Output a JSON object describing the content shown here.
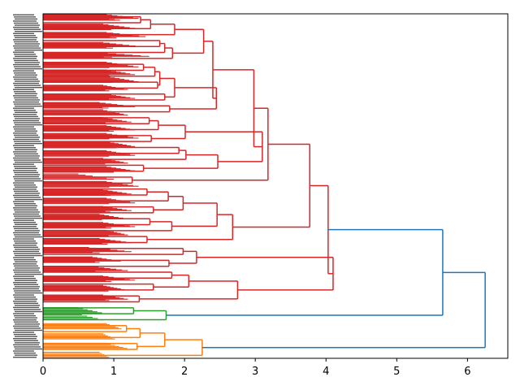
{
  "chart_data": {
    "type": "dendrogram",
    "orientation": "left",
    "title": "",
    "xlabel": "",
    "ylabel": "",
    "xlim": [
      0,
      6.57
    ],
    "x_ticks": [
      0,
      1,
      2,
      3,
      4,
      5,
      6
    ],
    "x_tick_labels": [
      "0",
      "1",
      "2",
      "3",
      "4",
      "5",
      "6"
    ],
    "leaf_count": 166,
    "colors": {
      "cluster_red": "#d62728",
      "cluster_green": "#2ca02c",
      "cluster_orange": "#ff7f0e",
      "link_above_threshold": "#1f77b4",
      "axis": "#000000"
    },
    "clusters": [
      {
        "name": "red",
        "color": "#d62728",
        "leaf_start": 0,
        "leaf_end": 140
      },
      {
        "name": "green",
        "color": "#2ca02c",
        "leaf_start": 140,
        "leaf_end": 150
      },
      {
        "name": "orange",
        "color": "#ff7f0e",
        "leaf_start": 150,
        "leaf_end": 166
      }
    ],
    "merges": [
      {
        "name": "A1",
        "height": 1.38,
        "color": "#d62728",
        "children": [
          {
            "leaf": 0
          },
          {
            "leaf": 1
          }
        ]
      },
      {
        "name": "A2",
        "height": 1.52,
        "color": "#d62728",
        "children": [
          {
            "node": "A1"
          },
          {
            "leaf": 2
          }
        ]
      },
      {
        "name": "A3",
        "height": 1.86,
        "color": "#d62728",
        "children": [
          {
            "node": "A2"
          },
          {
            "leaf": 3
          }
        ]
      },
      {
        "name": "A4",
        "height": 1.65,
        "color": "#d62728",
        "children": [
          {
            "leaf": 4
          },
          {
            "leaf": 5
          }
        ]
      },
      {
        "name": "A5",
        "height": 1.72,
        "color": "#d62728",
        "children": [
          {
            "node": "A4"
          },
          {
            "leaf": 6
          }
        ]
      },
      {
        "name": "A6",
        "height": 1.83,
        "color": "#d62728",
        "children": [
          {
            "node": "A5"
          },
          {
            "leaf": 7
          }
        ]
      },
      {
        "name": "A7",
        "height": 2.27,
        "color": "#d62728",
        "children": [
          {
            "node": "A3"
          },
          {
            "node": "A6"
          }
        ]
      },
      {
        "name": "B1",
        "height": 1.42,
        "color": "#d62728",
        "children": [
          {
            "leaf": 8
          },
          {
            "leaf": 9
          }
        ]
      },
      {
        "name": "B2",
        "height": 1.58,
        "color": "#d62728",
        "children": [
          {
            "node": "B1"
          },
          {
            "leaf": 10
          }
        ]
      },
      {
        "name": "B3",
        "height": 1.62,
        "color": "#d62728",
        "children": [
          {
            "leaf": 11
          },
          {
            "leaf": 12
          }
        ]
      },
      {
        "name": "B4",
        "height": 1.65,
        "color": "#d62728",
        "children": [
          {
            "node": "B2"
          },
          {
            "node": "B3"
          }
        ]
      },
      {
        "name": "B5",
        "height": 1.72,
        "color": "#d62728",
        "children": [
          {
            "leaf": 13
          },
          {
            "leaf": 14
          }
        ]
      },
      {
        "name": "B6",
        "height": 1.86,
        "color": "#d62728",
        "children": [
          {
            "node": "B4"
          },
          {
            "node": "B5"
          }
        ]
      },
      {
        "name": "B7",
        "height": 1.79,
        "color": "#d62728",
        "children": [
          {
            "leaf": 15
          },
          {
            "leaf": 16
          }
        ]
      },
      {
        "name": "B8",
        "height": 2.45,
        "color": "#d62728",
        "children": [
          {
            "node": "B6"
          },
          {
            "node": "B7"
          }
        ]
      },
      {
        "name": "B9",
        "height": 2.4,
        "color": "#d62728",
        "children": [
          {
            "node": "A7"
          },
          {
            "node": "B8"
          }
        ]
      },
      {
        "name": "C1",
        "height": 1.5,
        "color": "#d62728",
        "children": [
          {
            "leaf": 17
          },
          {
            "leaf": 18
          }
        ]
      },
      {
        "name": "C2",
        "height": 1.63,
        "color": "#d62728",
        "children": [
          {
            "node": "C1"
          },
          {
            "leaf": 19
          }
        ]
      },
      {
        "name": "C3",
        "height": 1.53,
        "color": "#d62728",
        "children": [
          {
            "leaf": 20
          },
          {
            "leaf": 21
          }
        ]
      },
      {
        "name": "C4",
        "height": 2.01,
        "color": "#d62728",
        "children": [
          {
            "node": "C2"
          },
          {
            "node": "C3"
          }
        ]
      },
      {
        "name": "C5",
        "height": 1.92,
        "color": "#d62728",
        "children": [
          {
            "leaf": 22
          },
          {
            "leaf": 23
          }
        ]
      },
      {
        "name": "C6",
        "height": 2.02,
        "color": "#d62728",
        "children": [
          {
            "node": "C5"
          },
          {
            "leaf": 24
          }
        ]
      },
      {
        "name": "C7",
        "height": 1.42,
        "color": "#d62728",
        "children": [
          {
            "leaf": 25
          },
          {
            "leaf": 26
          }
        ]
      },
      {
        "name": "C8",
        "height": 2.47,
        "color": "#d62728",
        "children": [
          {
            "node": "C6"
          },
          {
            "node": "C7"
          }
        ]
      },
      {
        "name": "C9",
        "height": 3.1,
        "color": "#d62728",
        "children": [
          {
            "node": "C4"
          },
          {
            "node": "C8"
          }
        ]
      },
      {
        "name": "D1",
        "height": 2.98,
        "color": "#d62728",
        "children": [
          {
            "node": "B9"
          },
          {
            "node": "C9"
          }
        ]
      },
      {
        "name": "D2",
        "height": 1.26,
        "color": "#d62728",
        "children": [
          {
            "leaf": 27
          },
          {
            "leaf": 28
          }
        ]
      },
      {
        "name": "D3",
        "height": 3.18,
        "color": "#d62728",
        "children": [
          {
            "node": "D1"
          },
          {
            "node": "D2"
          }
        ]
      },
      {
        "name": "E1",
        "height": 1.47,
        "color": "#d62728",
        "children": [
          {
            "leaf": 29
          },
          {
            "leaf": 30
          }
        ]
      },
      {
        "name": "E2",
        "height": 1.77,
        "color": "#d62728",
        "children": [
          {
            "node": "E1"
          },
          {
            "leaf": 31
          }
        ]
      },
      {
        "name": "E3",
        "height": 1.56,
        "color": "#d62728",
        "children": [
          {
            "leaf": 32
          },
          {
            "leaf": 33
          }
        ]
      },
      {
        "name": "E4",
        "height": 1.98,
        "color": "#d62728",
        "children": [
          {
            "node": "E2"
          },
          {
            "node": "E3"
          }
        ]
      },
      {
        "name": "E5",
        "height": 1.51,
        "color": "#d62728",
        "children": [
          {
            "leaf": 34
          },
          {
            "leaf": 35
          }
        ]
      },
      {
        "name": "E6",
        "height": 1.82,
        "color": "#d62728",
        "children": [
          {
            "node": "E5"
          },
          {
            "leaf": 36
          }
        ]
      },
      {
        "name": "E7",
        "height": 2.46,
        "color": "#d62728",
        "children": [
          {
            "node": "E4"
          },
          {
            "node": "E6"
          }
        ]
      },
      {
        "name": "E8",
        "height": 1.47,
        "color": "#d62728",
        "children": [
          {
            "leaf": 37
          },
          {
            "leaf": 38
          }
        ]
      },
      {
        "name": "E9",
        "height": 2.68,
        "color": "#d62728",
        "children": [
          {
            "node": "E7"
          },
          {
            "node": "E8"
          }
        ]
      },
      {
        "name": "F1",
        "height": 1.98,
        "color": "#d62728",
        "children": [
          {
            "leaf": 39
          },
          {
            "leaf": 40
          }
        ]
      },
      {
        "name": "F2",
        "height": 1.78,
        "color": "#d62728",
        "children": [
          {
            "leaf": 41
          },
          {
            "leaf": 42
          }
        ]
      },
      {
        "name": "F3",
        "height": 2.17,
        "color": "#d62728",
        "children": [
          {
            "node": "F1"
          },
          {
            "node": "F2"
          }
        ]
      },
      {
        "name": "F4",
        "height": 1.82,
        "color": "#d62728",
        "children": [
          {
            "leaf": 43
          },
          {
            "leaf": 44
          }
        ]
      },
      {
        "name": "F5",
        "height": 1.56,
        "color": "#d62728",
        "children": [
          {
            "leaf": 45
          },
          {
            "leaf": 46
          }
        ]
      },
      {
        "name": "F6",
        "height": 2.06,
        "color": "#d62728",
        "children": [
          {
            "node": "F4"
          },
          {
            "node": "F5"
          }
        ]
      },
      {
        "name": "F7",
        "height": 1.36,
        "color": "#d62728",
        "children": [
          {
            "leaf": 47
          },
          {
            "leaf": 48
          }
        ]
      },
      {
        "name": "F8",
        "height": 2.75,
        "color": "#d62728",
        "children": [
          {
            "node": "F6"
          },
          {
            "node": "F7"
          }
        ]
      },
      {
        "name": "F9",
        "height": 4.1,
        "color": "#d62728",
        "children": [
          {
            "node": "F3"
          },
          {
            "node": "F8"
          }
        ]
      },
      {
        "name": "G1",
        "height": 3.77,
        "color": "#d62728",
        "children": [
          {
            "node": "D3"
          },
          {
            "node": "E9"
          }
        ]
      },
      {
        "name": "G2",
        "height": 4.03,
        "color": "#d62728",
        "children": [
          {
            "node": "G1"
          },
          {
            "node": "F9"
          }
        ]
      },
      {
        "name": "H1",
        "height": 1.28,
        "color": "#2ca02c",
        "children": [
          {
            "leaf": 49
          },
          {
            "leaf": 50
          }
        ]
      },
      {
        "name": "H2",
        "height": 1.74,
        "color": "#2ca02c",
        "children": [
          {
            "node": "H1"
          },
          {
            "leaf": 51
          }
        ]
      },
      {
        "name": "I1",
        "height": 1.18,
        "color": "#ff7f0e",
        "children": [
          {
            "leaf": 52
          },
          {
            "leaf": 53
          }
        ]
      },
      {
        "name": "I2",
        "height": 1.37,
        "color": "#ff7f0e",
        "children": [
          {
            "node": "I1"
          },
          {
            "leaf": 54
          }
        ]
      },
      {
        "name": "I3",
        "height": 1.33,
        "color": "#ff7f0e",
        "children": [
          {
            "leaf": 55
          },
          {
            "leaf": 56
          }
        ]
      },
      {
        "name": "I4",
        "height": 1.72,
        "color": "#ff7f0e",
        "children": [
          {
            "node": "I2"
          },
          {
            "node": "I3"
          }
        ]
      },
      {
        "name": "I5",
        "height": 2.25,
        "color": "#ff7f0e",
        "children": [
          {
            "node": "I4"
          },
          {
            "leaf": 57
          }
        ]
      },
      {
        "name": "J1",
        "height": 5.65,
        "color": "#1f77b4",
        "children": [
          {
            "node": "G2"
          },
          {
            "node": "H2"
          }
        ]
      },
      {
        "name": "J2",
        "height": 6.25,
        "color": "#1f77b4",
        "children": [
          {
            "node": "J1"
          },
          {
            "node": "I5"
          }
        ]
      }
    ],
    "groups": [
      {
        "index": 0,
        "position": 0.6,
        "min": 0.9,
        "max": 1.35,
        "color": "#d62728",
        "lines": 10
      },
      {
        "index": 1,
        "position": 2.2,
        "min": 0.85,
        "max": 1.3,
        "color": "#d62728",
        "lines": 9
      },
      {
        "index": 2,
        "position": 3.6,
        "min": 0.9,
        "max": 1.45,
        "color": "#d62728",
        "lines": 9
      },
      {
        "index": 3,
        "position": 5.3,
        "min": 0.85,
        "max": 1.4,
        "color": "#d62728",
        "lines": 9
      },
      {
        "index": 4,
        "position": 7.0,
        "min": 0.8,
        "max": 1.5,
        "color": "#d62728",
        "lines": 10
      },
      {
        "index": 5,
        "position": 8.6,
        "min": 0.9,
        "max": 1.35,
        "color": "#d62728",
        "lines": 8
      },
      {
        "index": 6,
        "position": 9.9,
        "min": 0.9,
        "max": 1.3,
        "color": "#d62728",
        "lines": 8
      },
      {
        "index": 7,
        "position": 11.1,
        "min": 0.95,
        "max": 1.35,
        "color": "#d62728",
        "lines": 8
      },
      {
        "index": 8,
        "position": 12.5,
        "min": 0.85,
        "max": 1.2,
        "color": "#d62728",
        "lines": 9
      },
      {
        "index": 9,
        "position": 14.0,
        "min": 0.9,
        "max": 1.3,
        "color": "#d62728",
        "lines": 9
      },
      {
        "index": 10,
        "position": 15.4,
        "min": 0.8,
        "max": 1.3,
        "color": "#d62728",
        "lines": 9
      },
      {
        "index": 11,
        "position": 16.6,
        "min": 0.85,
        "max": 1.2,
        "color": "#d62728",
        "lines": 7
      },
      {
        "index": 12,
        "position": 17.9,
        "min": 0.85,
        "max": 1.25,
        "color": "#d62728",
        "lines": 8
      },
      {
        "index": 13,
        "position": 19.3,
        "min": 0.9,
        "max": 1.3,
        "color": "#d62728",
        "lines": 9
      },
      {
        "index": 14,
        "position": 20.6,
        "min": 0.9,
        "max": 1.35,
        "color": "#d62728",
        "lines": 8
      },
      {
        "index": 15,
        "position": 22.1,
        "min": 0.95,
        "max": 1.3,
        "color": "#d62728",
        "lines": 9
      },
      {
        "index": 16,
        "position": 23.5,
        "min": 0.9,
        "max": 1.3,
        "color": "#d62728",
        "lines": 8
      },
      {
        "index": 17,
        "position": 24.8,
        "min": 0.85,
        "max": 1.2,
        "color": "#d62728",
        "lines": 8
      },
      {
        "index": 18,
        "position": 26.2,
        "min": 0.9,
        "max": 1.3,
        "color": "#d62728",
        "lines": 9
      },
      {
        "index": 19,
        "position": 27.4,
        "min": 0.5,
        "max": 1.1,
        "color": "#d62728",
        "lines": 6
      },
      {
        "index": 20,
        "position": 28.7,
        "min": 0.9,
        "max": 1.35,
        "color": "#d62728",
        "lines": 8
      },
      {
        "index": 21,
        "position": 30.1,
        "min": 0.85,
        "max": 1.25,
        "color": "#d62728",
        "lines": 9
      },
      {
        "index": 22,
        "position": 31.5,
        "min": 0.9,
        "max": 1.3,
        "color": "#d62728",
        "lines": 8
      },
      {
        "index": 23,
        "position": 32.9,
        "min": 0.85,
        "max": 1.25,
        "color": "#d62728",
        "lines": 9
      },
      {
        "index": 24,
        "position": 34.2,
        "min": 0.8,
        "max": 1.2,
        "color": "#d62728",
        "lines": 8
      },
      {
        "index": 25,
        "position": 35.6,
        "min": 0.85,
        "max": 1.3,
        "color": "#d62728",
        "lines": 9
      },
      {
        "index": 26,
        "position": 36.9,
        "min": 0.9,
        "max": 1.2,
        "color": "#d62728",
        "lines": 8
      },
      {
        "index": 27,
        "position": 38.3,
        "min": 0.8,
        "max": 1.25,
        "color": "#d62728",
        "lines": 9
      },
      {
        "index": 28,
        "position": 39.8,
        "min": 0.65,
        "max": 1.25,
        "color": "#d62728",
        "lines": 9
      },
      {
        "index": 29,
        "position": 41.4,
        "min": 0.7,
        "max": 1.1,
        "color": "#d62728",
        "lines": 9
      },
      {
        "index": 30,
        "position": 43.0,
        "min": 0.7,
        "max": 1.2,
        "color": "#d62728",
        "lines": 9
      },
      {
        "index": 31,
        "position": 44.6,
        "min": 0.85,
        "max": 1.3,
        "color": "#d62728",
        "lines": 9
      },
      {
        "index": 32,
        "position": 46.2,
        "min": 0.85,
        "max": 1.15,
        "color": "#d62728",
        "lines": 9
      },
      {
        "index": 33,
        "position": 47.8,
        "min": 0.85,
        "max": 1.2,
        "color": "#d62728",
        "lines": 9
      },
      {
        "index": 34,
        "position": 49.9,
        "min": 0.5,
        "max": 0.9,
        "color": "#2ca02c",
        "lines": 6
      },
      {
        "index": 35,
        "position": 51.1,
        "min": 0.55,
        "max": 1.0,
        "color": "#2ca02c",
        "lines": 5
      },
      {
        "index": 36,
        "position": 52.6,
        "min": 0.9,
        "max": 1.15,
        "color": "#ff7f0e",
        "lines": 6
      },
      {
        "index": 37,
        "position": 54.3,
        "min": 0.85,
        "max": 1.05,
        "color": "#ff7f0e",
        "lines": 6
      },
      {
        "index": 38,
        "position": 55.9,
        "min": 0.9,
        "max": 1.25,
        "color": "#ff7f0e",
        "lines": 6
      },
      {
        "index": 39,
        "position": 57.4,
        "min": 0.8,
        "max": 1.0,
        "color": "#ff7f0e",
        "lines": 5
      }
    ]
  }
}
